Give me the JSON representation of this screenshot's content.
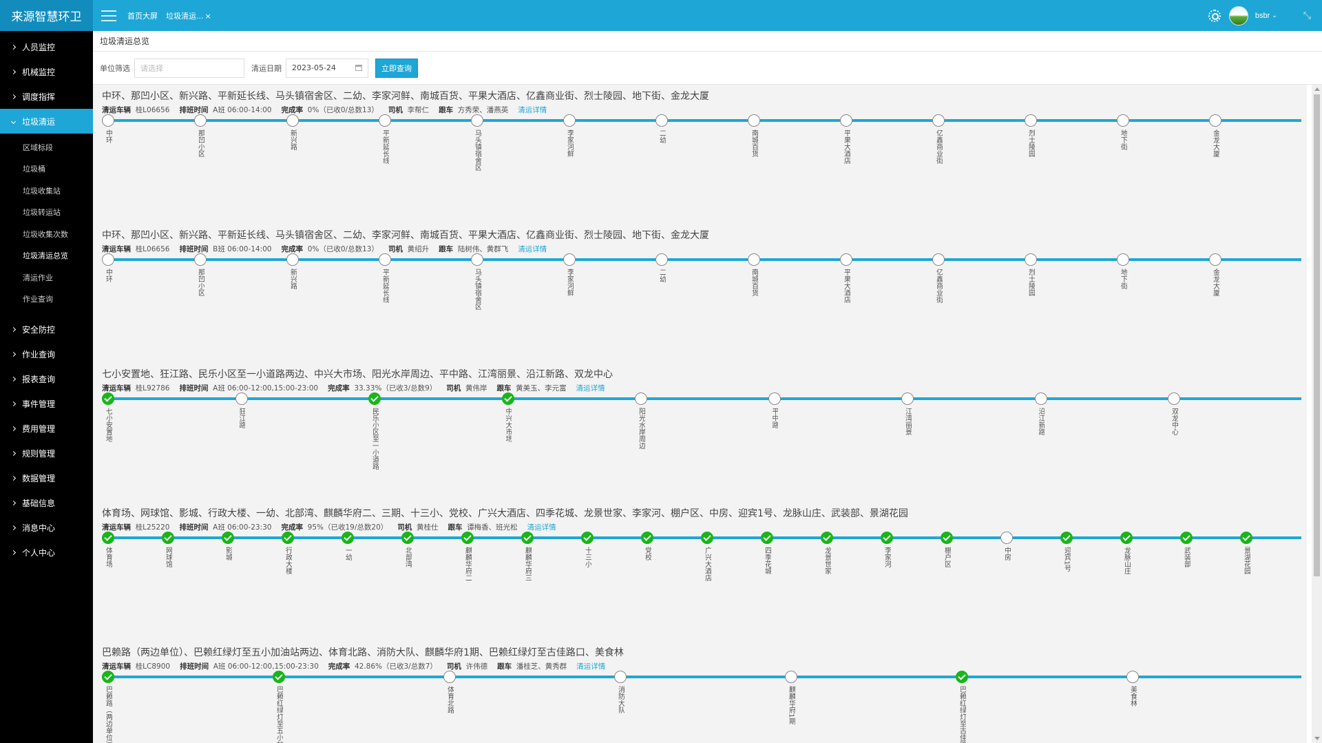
{
  "app": {
    "brand": "来源智慧环卫"
  },
  "header": {
    "breadcrumbs": [
      {
        "label": "首页大屏"
      },
      {
        "label": "垃圾清运...",
        "close": "×"
      }
    ],
    "user": {
      "name": "bsbr",
      "caret": "⌄"
    },
    "icons": {
      "settings": "gear-icon",
      "collapse": "collapse-icon",
      "menu": "menu-icon"
    }
  },
  "sidebar": {
    "items": [
      {
        "label": "人员监控"
      },
      {
        "label": "机械监控"
      },
      {
        "label": "调度指挥"
      },
      {
        "label": "垃圾清运",
        "active": true,
        "children": [
          "区域标段",
          "垃圾桶",
          "垃圾收集站",
          "垃圾转运站",
          "垃圾收集次数",
          "垃圾清运总览",
          "清运作业",
          "作业查询"
        ],
        "active_child": "垃圾清运总览"
      },
      {
        "label": "安全防控"
      },
      {
        "label": "作业查询"
      },
      {
        "label": "报表查询"
      },
      {
        "label": "事件管理"
      },
      {
        "label": "费用管理"
      },
      {
        "label": "规则管理"
      },
      {
        "label": "数据管理"
      },
      {
        "label": "基础信息"
      },
      {
        "label": "消息中心"
      },
      {
        "label": "个人中心"
      }
    ]
  },
  "page": {
    "title": "垃圾清运总览"
  },
  "filters": {
    "unit_label": "单位筛选",
    "unit_placeholder": "请选择",
    "date_label": "清运日期",
    "date_value": "2023-05-24",
    "query_button": "立即查询"
  },
  "routes": [
    {
      "title": "中环、那凹小区、新兴路、平新延长线、马头镇宿舍区、二幼、李家河鲜、南城百货、平果大酒店、亿鑫商业街、烈士陵园、地下街、金龙大厦",
      "vehicle_label": "清运车辆",
      "vehicle": "桂L06656",
      "shift_label": "排班时间",
      "shift": "A班 06:00-14:00",
      "rate_label": "完成率",
      "rate": "0%（已收0/总数13）",
      "driver_label": "司机",
      "driver": "李帮仁",
      "follow_label": "跟车",
      "follow": "方秀荣、潘燕英",
      "detail": "清运详情",
      "stops": [
        {
          "name": "中环",
          "done": false
        },
        {
          "name": "那凹小区",
          "done": false
        },
        {
          "name": "新兴路",
          "done": false
        },
        {
          "name": "平新延长线",
          "done": false
        },
        {
          "name": "马头镇宿舍区",
          "done": false
        },
        {
          "name": "李家河鲜",
          "done": false
        },
        {
          "name": "二幼",
          "done": false
        },
        {
          "name": "南城百货",
          "done": false
        },
        {
          "name": "平果大酒店",
          "done": false
        },
        {
          "name": "亿鑫商业街",
          "done": false
        },
        {
          "name": "烈士陵园",
          "done": false
        },
        {
          "name": "地下街",
          "done": false
        },
        {
          "name": "金龙大厦",
          "done": false
        }
      ]
    },
    {
      "title": "中环、那凹小区、新兴路、平新延长线、马头镇宿舍区、二幼、李家河鲜、南城百货、平果大酒店、亿鑫商业街、烈士陵园、地下街、金龙大厦",
      "vehicle_label": "清运车辆",
      "vehicle": "桂L06656",
      "shift_label": "排班时间",
      "shift": "B班 06:00-14:00",
      "rate_label": "完成率",
      "rate": "0%（已收0/总数13）",
      "driver_label": "司机",
      "driver": "黄绍升",
      "follow_label": "跟车",
      "follow": "陆树伟、黄群飞",
      "detail": "清运详情",
      "stops": [
        {
          "name": "中环",
          "done": false
        },
        {
          "name": "那凹小区",
          "done": false
        },
        {
          "name": "新兴路",
          "done": false
        },
        {
          "name": "平新延长线",
          "done": false
        },
        {
          "name": "马头镇宿舍区",
          "done": false
        },
        {
          "name": "李家河鲜",
          "done": false
        },
        {
          "name": "二幼",
          "done": false
        },
        {
          "name": "南城百货",
          "done": false
        },
        {
          "name": "平果大酒店",
          "done": false
        },
        {
          "name": "亿鑫商业街",
          "done": false
        },
        {
          "name": "烈士陵园",
          "done": false
        },
        {
          "name": "地下街",
          "done": false
        },
        {
          "name": "金龙大厦",
          "done": false
        }
      ]
    },
    {
      "title": "七小安置地、狂江路、民乐小区至一小道路两边、中兴大市场、阳光水岸周边、平中路、江湾丽景、沿江新路、双龙中心",
      "vehicle_label": "清运车辆",
      "vehicle": "桂L92786",
      "shift_label": "排班时间",
      "shift": "A班 06:00-12:00,15:00-23:00",
      "rate_label": "完成率",
      "rate": "33.33%（已收3/总数9）",
      "driver_label": "司机",
      "driver": "黄伟岸",
      "follow_label": "跟车",
      "follow": "黄美玉、李元富",
      "detail": "清运详情",
      "stops": [
        {
          "name": "七小安置地",
          "done": true
        },
        {
          "name": "狂江路",
          "done": false
        },
        {
          "name": "民乐小区至一小道路两边",
          "done": true
        },
        {
          "name": "中兴大市场",
          "done": true
        },
        {
          "name": "阳光水岸周边",
          "done": false
        },
        {
          "name": "平中路",
          "done": false
        },
        {
          "name": "江湾丽景",
          "done": false
        },
        {
          "name": "沿江新路",
          "done": false
        },
        {
          "name": "双龙中心",
          "done": false
        }
      ]
    },
    {
      "title": "体育场、网球馆、影城、行政大楼、一幼、北部湾、麒麟华府二、三期、十三小、党校、广兴大酒店、四季花城、龙景世家、李家河、棚户区、中房、迎宾1号、龙脉山庄、武装部、景湖花园",
      "vehicle_label": "清运车辆",
      "vehicle": "桂L25220",
      "shift_label": "排班时间",
      "shift": "A班 06:00-23:30",
      "rate_label": "完成率",
      "rate": "95%（已收19/总数20）",
      "driver_label": "司机",
      "driver": "黄桂仕",
      "follow_label": "跟车",
      "follow": "谭梅香、班光松",
      "detail": "清运详情",
      "stops": [
        {
          "name": "体育场",
          "done": true
        },
        {
          "name": "网球馆",
          "done": true
        },
        {
          "name": "影城",
          "done": true
        },
        {
          "name": "行政大楼",
          "done": true
        },
        {
          "name": "一幼",
          "done": true
        },
        {
          "name": "北部湾",
          "done": true
        },
        {
          "name": "麒麟华府二",
          "done": true
        },
        {
          "name": "麒麟华府三",
          "done": true
        },
        {
          "name": "十三小",
          "done": true
        },
        {
          "name": "党校",
          "done": true
        },
        {
          "name": "广兴大酒店",
          "done": true
        },
        {
          "name": "四季花城",
          "done": true
        },
        {
          "name": "龙景世家",
          "done": true
        },
        {
          "name": "李家河",
          "done": true
        },
        {
          "name": "棚户区",
          "done": true
        },
        {
          "name": "中房",
          "done": false
        },
        {
          "name": "迎宾1号",
          "done": true
        },
        {
          "name": "龙脉山庄",
          "done": true
        },
        {
          "name": "武装部",
          "done": true
        },
        {
          "name": "景湖花园",
          "done": true
        }
      ]
    },
    {
      "title": "巴赖路（两边单位）、巴赖红绿灯至五小加油站两边、体育北路、消防大队、麒麟华府1期、巴赖红绿灯至古佳路口、美食林",
      "vehicle_label": "清运车辆",
      "vehicle": "桂LC8900",
      "shift_label": "排班时间",
      "shift": "A班 06:00-12:00,15:00-23:30",
      "rate_label": "完成率",
      "rate": "42.86%（已收3/总数7）",
      "driver_label": "司机",
      "driver": "许伟德",
      "follow_label": "跟车",
      "follow": "潘桂芝、黄秀群",
      "detail": "清运详情",
      "stops": [
        {
          "name": "巴赖路（两边单位）",
          "done": true
        },
        {
          "name": "巴赖红绿灯至五小加油站两边",
          "done": true
        },
        {
          "name": "体育北路",
          "done": false
        },
        {
          "name": "消防大队",
          "done": false
        },
        {
          "name": "麒麟华府1期",
          "done": false
        },
        {
          "name": "巴赖红绿灯至古佳路口",
          "done": true
        },
        {
          "name": "美食林",
          "done": false
        }
      ]
    }
  ]
}
